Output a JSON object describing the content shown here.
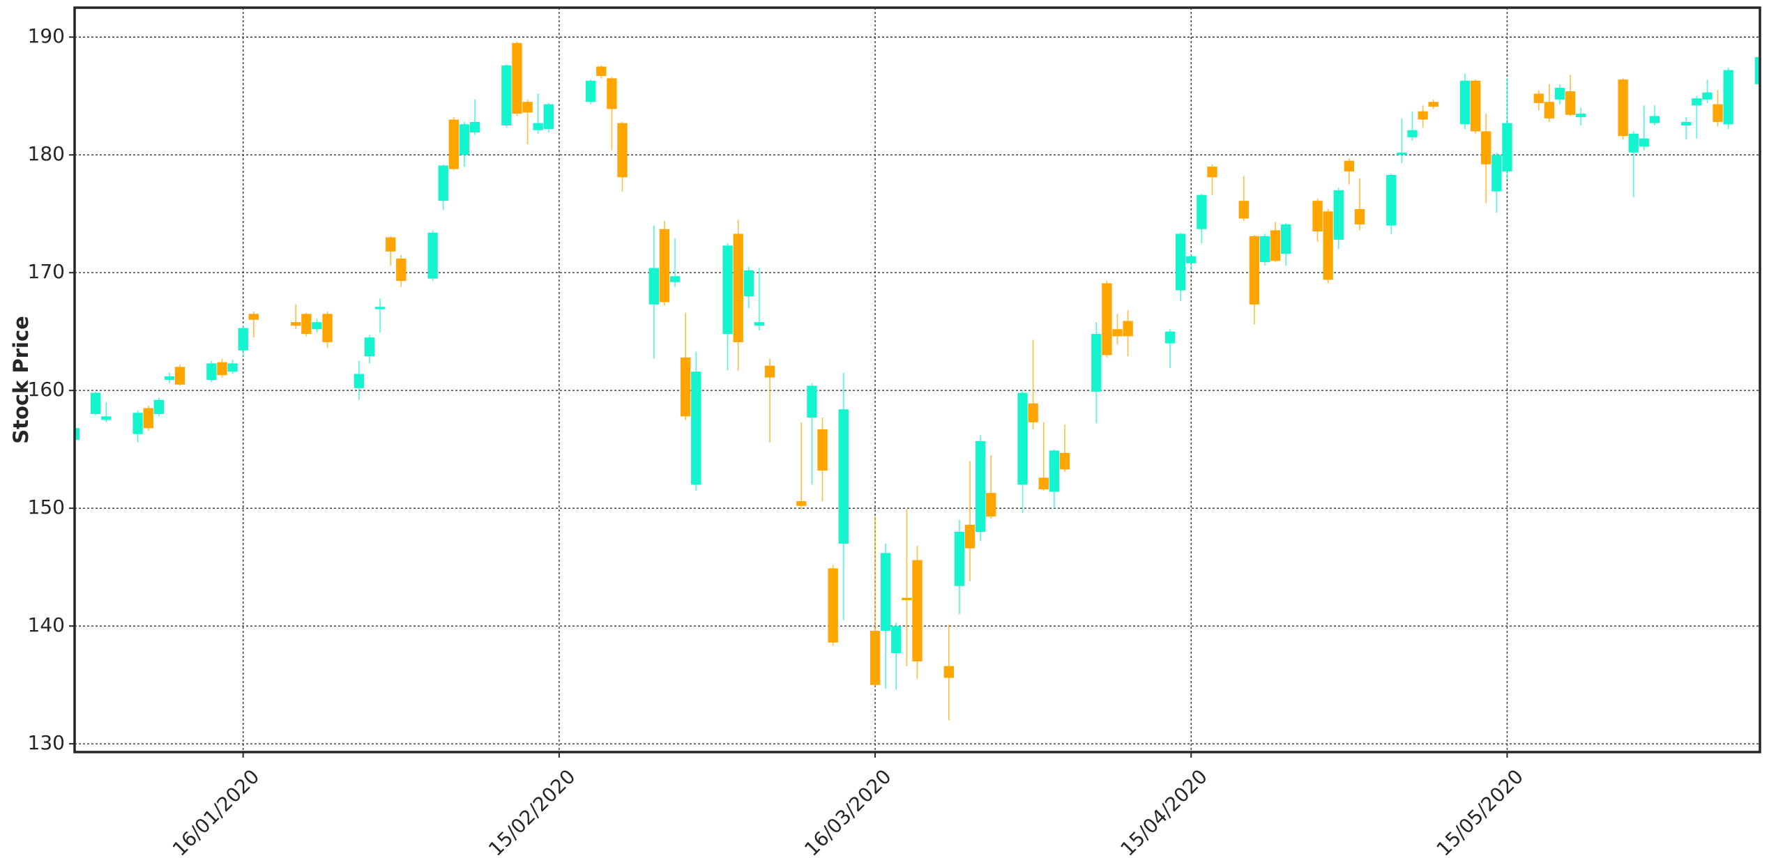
{
  "chart_data": {
    "type": "candlestick",
    "ylabel": "Stock Price",
    "up_color": "#14f5cf",
    "down_color": "#ffa500",
    "grid": true,
    "ylim": [
      129.3,
      192.5
    ],
    "yticks": [
      130,
      140,
      150,
      160,
      170,
      180,
      190
    ],
    "xlim": [
      "2019-12-31",
      "2020-06-08"
    ],
    "xticks": [
      {
        "value": "2020-01-16",
        "label": "16/01/2020"
      },
      {
        "value": "2020-02-15",
        "label": "15/02/2020"
      },
      {
        "value": "2020-03-16",
        "label": "16/03/2020"
      },
      {
        "value": "2020-04-15",
        "label": "15/04/2020"
      },
      {
        "value": "2020-05-15",
        "label": "15/05/2020"
      }
    ],
    "x": [
      "2019-12-31",
      "2020-01-02",
      "2020-01-03",
      "2020-01-06",
      "2020-01-07",
      "2020-01-08",
      "2020-01-09",
      "2020-01-10",
      "2020-01-13",
      "2020-01-14",
      "2020-01-15",
      "2020-01-16",
      "2020-01-17",
      "2020-01-21",
      "2020-01-22",
      "2020-01-23",
      "2020-01-24",
      "2020-01-27",
      "2020-01-28",
      "2020-01-29",
      "2020-01-30",
      "2020-01-31",
      "2020-02-03",
      "2020-02-04",
      "2020-02-05",
      "2020-02-06",
      "2020-02-07",
      "2020-02-10",
      "2020-02-11",
      "2020-02-12",
      "2020-02-13",
      "2020-02-14",
      "2020-02-18",
      "2020-02-19",
      "2020-02-20",
      "2020-02-21",
      "2020-02-24",
      "2020-02-25",
      "2020-02-26",
      "2020-02-27",
      "2020-02-28",
      "2020-03-02",
      "2020-03-03",
      "2020-03-04",
      "2020-03-05",
      "2020-03-06",
      "2020-03-09",
      "2020-03-10",
      "2020-03-11",
      "2020-03-12",
      "2020-03-13",
      "2020-03-16",
      "2020-03-17",
      "2020-03-18",
      "2020-03-19",
      "2020-03-20",
      "2020-03-23",
      "2020-03-24",
      "2020-03-25",
      "2020-03-26",
      "2020-03-27",
      "2020-03-30",
      "2020-03-31",
      "2020-04-01",
      "2020-04-02",
      "2020-04-03",
      "2020-04-06",
      "2020-04-07",
      "2020-04-08",
      "2020-04-09",
      "2020-04-13",
      "2020-04-14",
      "2020-04-15",
      "2020-04-16",
      "2020-04-17",
      "2020-04-20",
      "2020-04-21",
      "2020-04-22",
      "2020-04-23",
      "2020-04-24",
      "2020-04-27",
      "2020-04-28",
      "2020-04-29",
      "2020-04-30",
      "2020-05-01",
      "2020-05-04",
      "2020-05-05",
      "2020-05-06",
      "2020-05-07",
      "2020-05-08",
      "2020-05-11",
      "2020-05-12",
      "2020-05-13",
      "2020-05-14",
      "2020-05-15",
      "2020-05-18",
      "2020-05-19",
      "2020-05-20",
      "2020-05-21",
      "2020-05-22",
      "2020-05-26",
      "2020-05-27",
      "2020-05-28",
      "2020-05-29",
      "2020-06-01",
      "2020-06-02",
      "2020-06-03",
      "2020-06-04",
      "2020-06-05",
      "2020-06-08"
    ],
    "open": [
      155.8,
      158.0,
      157.5,
      156.3,
      158.5,
      158.0,
      160.9,
      162.0,
      160.9,
      162.4,
      161.6,
      163.4,
      166.5,
      165.8,
      166.5,
      165.2,
      166.5,
      160.2,
      162.9,
      166.9,
      173.0,
      171.2,
      169.5,
      176.1,
      183.0,
      180.0,
      181.9,
      182.5,
      189.5,
      184.5,
      182.1,
      182.2,
      184.5,
      187.5,
      186.5,
      182.7,
      167.3,
      173.7,
      169.2,
      162.8,
      152.0,
      164.8,
      173.3,
      168.0,
      165.5,
      162.1,
      150.6,
      157.7,
      156.7,
      144.9,
      147.0,
      139.6,
      139.6,
      137.7,
      142.4,
      145.6,
      136.6,
      143.4,
      148.6,
      148.0,
      151.3,
      152.0,
      158.9,
      152.6,
      151.4,
      154.7,
      159.9,
      169.1,
      165.2,
      165.9,
      164.0,
      168.5,
      170.8,
      173.7,
      179.0,
      176.1,
      173.1,
      170.9,
      173.6,
      171.6,
      176.1,
      175.2,
      172.8,
      179.5,
      175.4,
      174.0,
      180.0,
      181.5,
      183.7,
      184.5,
      182.6,
      186.3,
      182.0,
      176.9,
      178.6,
      185.2,
      184.5,
      184.7,
      185.4,
      183.2,
      186.4,
      180.2,
      180.7,
      182.7,
      182.5,
      184.2,
      184.7,
      184.3,
      182.6,
      186.0
    ],
    "high": [
      157.2,
      159.9,
      159.0,
      158.3,
      158.7,
      159.4,
      161.5,
      162.2,
      162.5,
      162.7,
      162.6,
      165.5,
      166.7,
      167.3,
      166.6,
      166.1,
      166.7,
      162.5,
      164.7,
      167.8,
      173.1,
      171.5,
      173.6,
      179.2,
      183.2,
      182.8,
      184.7,
      187.7,
      189.6,
      184.7,
      185.2,
      184.4,
      186.4,
      187.6,
      186.6,
      182.8,
      174.0,
      174.4,
      172.9,
      166.6,
      163.3,
      172.5,
      174.5,
      170.5,
      170.4,
      162.7,
      157.3,
      160.6,
      157.7,
      145.2,
      161.5,
      149.3,
      147.0,
      140.3,
      149.9,
      146.8,
      140.1,
      149.0,
      154.0,
      156.2,
      154.5,
      160.0,
      164.3,
      157.3,
      155.0,
      157.1,
      165.8,
      169.3,
      166.5,
      166.8,
      165.2,
      173.4,
      171.6,
      176.7,
      179.2,
      178.2,
      173.2,
      173.3,
      174.3,
      174.2,
      176.3,
      175.4,
      177.2,
      179.7,
      178.0,
      178.4,
      183.1,
      183.7,
      184.2,
      184.7,
      186.9,
      186.4,
      183.5,
      180.2,
      186.5,
      185.5,
      186.0,
      186.0,
      186.8,
      184.0,
      186.5,
      182.0,
      184.2,
      184.2,
      183.2,
      185.0,
      186.4,
      185.5,
      187.4,
      188.4
    ],
    "low": [
      155.6,
      157.9,
      157.3,
      155.6,
      156.6,
      157.8,
      160.6,
      160.4,
      160.7,
      161.1,
      161.4,
      162.9,
      164.5,
      165.2,
      164.6,
      164.9,
      163.6,
      159.2,
      162.3,
      164.9,
      170.6,
      168.8,
      169.3,
      175.3,
      178.7,
      179.0,
      181.7,
      182.3,
      183.3,
      180.9,
      181.8,
      181.9,
      184.3,
      186.5,
      180.4,
      176.9,
      162.7,
      167.2,
      168.8,
      157.5,
      151.5,
      161.7,
      161.7,
      167.0,
      165.1,
      155.6,
      149.9,
      152.0,
      150.6,
      138.3,
      140.5,
      134.9,
      134.7,
      134.6,
      136.6,
      135.5,
      132.0,
      141.0,
      143.8,
      147.2,
      149.1,
      149.6,
      156.7,
      151.5,
      150.0,
      153.1,
      157.2,
      162.8,
      163.9,
      162.9,
      161.9,
      167.6,
      170.2,
      172.5,
      176.6,
      174.4,
      165.6,
      170.6,
      170.9,
      170.6,
      172.6,
      169.1,
      172.0,
      177.5,
      173.6,
      173.3,
      179.3,
      181.2,
      182.3,
      183.9,
      182.2,
      181.8,
      175.9,
      175.1,
      177.9,
      183.8,
      182.8,
      184.3,
      183.3,
      182.5,
      181.3,
      176.4,
      180.4,
      182.5,
      181.3,
      181.4,
      184.4,
      182.4,
      182.2,
      185.8
    ],
    "close": [
      156.8,
      159.8,
      157.8,
      158.1,
      156.8,
      159.2,
      161.2,
      160.5,
      162.3,
      161.3,
      162.3,
      165.3,
      166.0,
      165.5,
      164.8,
      165.8,
      164.1,
      161.4,
      164.5,
      167.1,
      171.8,
      169.3,
      173.4,
      179.1,
      178.8,
      182.6,
      182.8,
      187.6,
      183.5,
      183.6,
      182.7,
      184.3,
      186.3,
      186.7,
      183.9,
      178.1,
      170.4,
      167.5,
      169.7,
      157.8,
      161.6,
      172.3,
      164.1,
      170.2,
      165.8,
      161.1,
      150.2,
      160.4,
      153.2,
      138.6,
      158.4,
      135.0,
      146.2,
      140.0,
      142.2,
      137.0,
      135.6,
      148.0,
      146.6,
      155.7,
      149.3,
      159.8,
      157.3,
      151.6,
      154.9,
      153.3,
      164.8,
      163.0,
      164.6,
      164.6,
      165.0,
      173.3,
      171.4,
      176.6,
      178.1,
      174.6,
      167.3,
      173.1,
      171.0,
      174.1,
      173.5,
      169.4,
      177.0,
      178.6,
      174.1,
      178.3,
      180.2,
      182.1,
      183.0,
      184.1,
      186.3,
      182.0,
      179.2,
      180.0,
      182.7,
      184.4,
      183.1,
      185.7,
      183.4,
      183.5,
      181.6,
      181.8,
      181.4,
      183.3,
      182.8,
      184.8,
      185.3,
      182.8,
      187.2,
      188.3
    ]
  }
}
